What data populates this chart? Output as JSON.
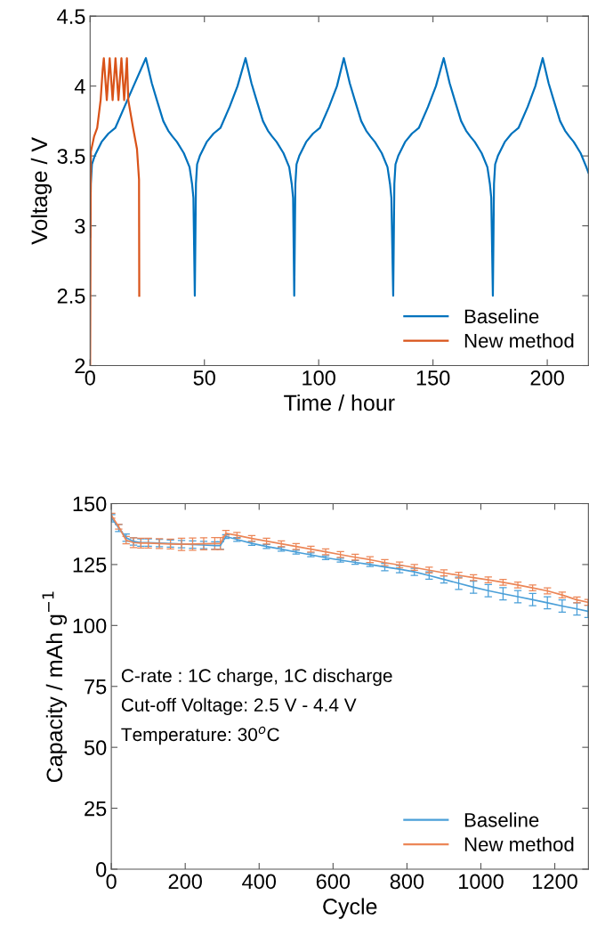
{
  "chart_data": [
    {
      "type": "line",
      "xlabel": "Time / hour",
      "ylabel": "Voltage / V",
      "xlim": [
        0,
        218
      ],
      "xticks": [
        0,
        50,
        100,
        150,
        200
      ],
      "ylim": [
        2,
        4.5
      ],
      "yticks": [
        2,
        2.5,
        3,
        3.5,
        4,
        4.5
      ],
      "grid": false,
      "legend": "bottom right",
      "marker": "none",
      "line_style": "solid",
      "series": [
        {
          "name": "Baseline",
          "color": "#0072bd",
          "x": [
            0,
            0.3,
            0.8,
            2,
            5,
            8,
            11,
            15,
            19,
            24.4,
            27,
            29.2,
            32,
            34.2,
            36,
            38,
            41,
            43.5,
            44.6,
            45.2,
            45.8,
            46.3,
            46.8,
            48,
            51,
            54,
            57,
            61,
            64.5,
            68,
            70.6,
            72.8,
            75.6,
            77.8,
            79.6,
            81.6,
            84.6,
            87.1,
            88.2,
            88.8,
            89.3,
            89.8,
            90.3,
            91.5,
            94.5,
            97.5,
            100.5,
            104.5,
            108,
            111,
            113.6,
            115.8,
            118.6,
            120.8,
            122.6,
            124.6,
            127.6,
            130.1,
            131.2,
            131.8,
            132.6,
            133.1,
            133.6,
            134.8,
            137.8,
            140.8,
            143.8,
            147.8,
            151.3,
            154.7,
            157.3,
            159.5,
            162.3,
            164.5,
            166.3,
            168.3,
            171.3,
            173.8,
            174.9,
            175.5,
            176.2,
            176.7,
            177.2,
            178.4,
            181.4,
            184.4,
            187.4,
            191.4,
            194.8,
            198,
            200.6,
            202.8,
            205.6,
            207.8,
            209.6,
            211.6,
            214.6,
            217.1,
            218
          ],
          "values": [
            2.92,
            3.3,
            3.44,
            3.5,
            3.6,
            3.66,
            3.7,
            3.85,
            4.0,
            4.2,
            4.02,
            3.9,
            3.75,
            3.68,
            3.64,
            3.6,
            3.52,
            3.42,
            3.3,
            3.2,
            2.5,
            3.3,
            3.44,
            3.5,
            3.6,
            3.66,
            3.7,
            3.85,
            4.0,
            4.2,
            4.02,
            3.9,
            3.75,
            3.68,
            3.64,
            3.6,
            3.52,
            3.42,
            3.3,
            3.2,
            2.5,
            3.3,
            3.44,
            3.5,
            3.6,
            3.66,
            3.7,
            3.85,
            4.0,
            4.2,
            4.02,
            3.9,
            3.75,
            3.68,
            3.64,
            3.6,
            3.52,
            3.42,
            3.3,
            3.2,
            2.5,
            3.3,
            3.44,
            3.5,
            3.6,
            3.66,
            3.7,
            3.85,
            4.0,
            4.2,
            4.02,
            3.9,
            3.75,
            3.68,
            3.64,
            3.6,
            3.52,
            3.42,
            3.3,
            3.2,
            2.5,
            3.3,
            3.44,
            3.5,
            3.6,
            3.66,
            3.7,
            3.85,
            4.0,
            4.2,
            4.02,
            3.9,
            3.75,
            3.68,
            3.64,
            3.6,
            3.52,
            3.42,
            3.38
          ]
        },
        {
          "name": "New method",
          "color": "#d95319",
          "x": [
            0,
            0.2,
            0.33,
            1.75,
            3.1,
            4.6,
            5.5,
            6,
            7.3,
            8.56,
            9.85,
            11.1,
            12.4,
            13.7,
            14.9,
            16.1,
            16.7,
            18.8,
            20.5,
            21.4,
            21.5
          ],
          "values": [
            2.0,
            3.0,
            3.53,
            3.64,
            3.7,
            3.9,
            4.12,
            4.2,
            3.9,
            4.2,
            3.9,
            4.2,
            3.9,
            4.2,
            3.9,
            4.2,
            3.9,
            3.7,
            3.55,
            3.33,
            2.5
          ]
        }
      ]
    },
    {
      "type": "line",
      "xlabel": "Cycle",
      "ylabel": "Capacity / mAh g$^{−1}$",
      "xlim": [
        0,
        1291
      ],
      "xticks": [
        0,
        200,
        400,
        600,
        800,
        1000,
        1200
      ],
      "ylim": [
        0,
        150
      ],
      "yticks": [
        0,
        25,
        50,
        75,
        100,
        125,
        150
      ],
      "grid": false,
      "legend": "bottom right",
      "marker": "none",
      "line_style": "solid",
      "annotations": [
        "C-rate : 1C charge, 1C discharge",
        "Cut-off Voltage: 2.5 V - 4.4 V",
        "Temperature: 30$^{o}$C"
      ],
      "x": [
        1,
        20,
        40,
        60,
        80,
        100,
        130,
        160,
        190,
        220,
        250,
        280,
        295,
        310,
        340,
        380,
        420,
        460,
        500,
        540,
        580,
        620,
        660,
        700,
        740,
        780,
        820,
        860,
        900,
        940,
        980,
        1020,
        1060,
        1100,
        1140,
        1180,
        1220,
        1260,
        1290
      ],
      "series": [
        {
          "name": "Baseline",
          "color": "#4a9fd8",
          "values": [
            144,
            140,
            136,
            134.5,
            134,
            134,
            133.8,
            133.6,
            133.4,
            133.2,
            133,
            132.8,
            132.8,
            136.5,
            135.3,
            133.7,
            132.4,
            131.3,
            130.1,
            129,
            127.8,
            126.8,
            125.9,
            125,
            124,
            123.1,
            122,
            120.5,
            118.9,
            117.3,
            115.7,
            114.3,
            113,
            111.8,
            110.6,
            109.3,
            108,
            106.8,
            105.8
          ],
          "errors": [
            1.5,
            1.5,
            1.5,
            1.5,
            1.5,
            1.5,
            1.5,
            1.5,
            1.5,
            1.5,
            1.5,
            1.5,
            1.5,
            0.8,
            0.8,
            0.8,
            0.8,
            0.8,
            0.8,
            0.8,
            0.8,
            0.8,
            0.8,
            0.8,
            1.5,
            1.5,
            1.5,
            1.5,
            1.5,
            2.5,
            2.5,
            2.5,
            2.5,
            2.5,
            2.5,
            2.5,
            2.5,
            2.5,
            2.5
          ]
        },
        {
          "name": "New method",
          "color": "#ec8657",
          "values": [
            145,
            140.5,
            135,
            134,
            133.8,
            133.8,
            133.6,
            133.4,
            133.3,
            133.4,
            133.5,
            133.6,
            133.6,
            137.8,
            137,
            135.7,
            134.6,
            133.5,
            132.4,
            131.3,
            130.2,
            129.1,
            128,
            127,
            125.8,
            124.8,
            123.8,
            122.7,
            121.6,
            120.6,
            119.6,
            118.7,
            117.7,
            116.6,
            115.4,
            114.2,
            112.5,
            110.5,
            109.5
          ],
          "errors": [
            1,
            1,
            1.5,
            2,
            2,
            2,
            2,
            2,
            2.5,
            2.5,
            2.5,
            2.5,
            2.5,
            1.2,
            1.2,
            1.2,
            1.2,
            1.2,
            1.2,
            1.2,
            1.2,
            1.2,
            1.2,
            1.2,
            1.2,
            1.2,
            1.2,
            1.2,
            1.2,
            1.2,
            1.2,
            1.2,
            1.2,
            1.2,
            1.2,
            1.2,
            1.2,
            1.2,
            1.2
          ]
        }
      ]
    }
  ]
}
